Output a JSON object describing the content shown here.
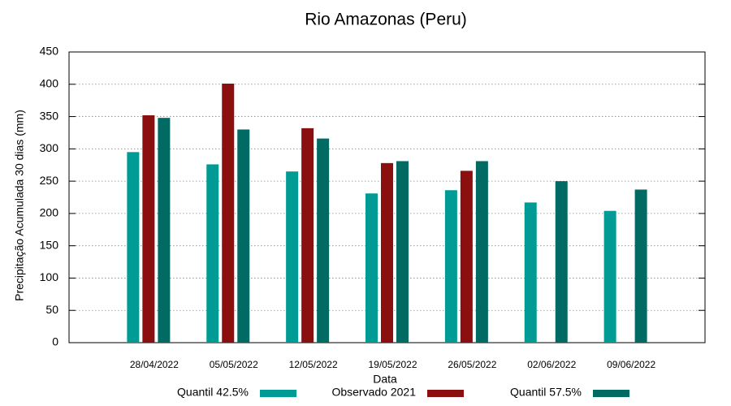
{
  "chart_data": {
    "type": "bar",
    "title": "Rio Amazonas (Peru)",
    "x_label": "Data",
    "y_label": "Precipitação Acumulada 30 dias (mm)",
    "categories": [
      "28/04/2022",
      "05/05/2022",
      "12/05/2022",
      "19/05/2022",
      "26/05/2022",
      "02/06/2022",
      "09/06/2022"
    ],
    "series": [
      {
        "name": "Quantil 42.5%",
        "color": "#009b95",
        "values": [
          295,
          276,
          265,
          231,
          236,
          217,
          204
        ]
      },
      {
        "name": "Observado 2021",
        "color": "#8b0f0f",
        "values": [
          352,
          401,
          332,
          278,
          266,
          null,
          null
        ]
      },
      {
        "name": "Quantil 57.5%",
        "color": "#006a63",
        "values": [
          348,
          330,
          316,
          281,
          281,
          250,
          237
        ]
      }
    ],
    "ylim": [
      0,
      450
    ],
    "yticks": [
      0,
      50,
      100,
      150,
      200,
      250,
      300,
      350,
      400,
      450
    ],
    "grid": true,
    "legend": "bottom"
  }
}
